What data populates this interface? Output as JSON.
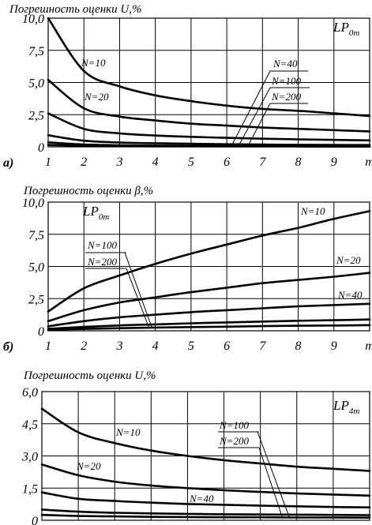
{
  "chart_data": [
    {
      "type": "line",
      "panel_label": "а)",
      "title": "Погрешность оценки U,%",
      "model_label": {
        "main": "LP",
        "sub": "0m"
      },
      "x": [
        1,
        2,
        3,
        4,
        5,
        6,
        7,
        8,
        9,
        10
      ],
      "x_tick_labels": [
        "1",
        "2",
        "3",
        "4",
        "5",
        "6",
        "7",
        "8",
        "9",
        "m"
      ],
      "ylim": [
        0,
        10
      ],
      "y_ticks": [
        0,
        2.5,
        5,
        7.5,
        10
      ],
      "y_tick_labels": [
        "0",
        "2,5",
        "5,0",
        "7,5",
        "10,0"
      ],
      "grid": true,
      "series": [
        {
          "name": "N=10",
          "values": [
            10.0,
            5.9,
            4.7,
            4.0,
            3.55,
            3.2,
            2.95,
            2.8,
            2.6,
            2.4
          ]
        },
        {
          "name": "N=20",
          "values": [
            5.2,
            3.0,
            2.35,
            2.05,
            1.8,
            1.65,
            1.5,
            1.4,
            1.3,
            1.2
          ]
        },
        {
          "name": "",
          "values": [
            2.6,
            1.4,
            1.05,
            0.88,
            0.78,
            0.7,
            0.63,
            0.58,
            0.54,
            0.5
          ]
        },
        {
          "name": "N=40",
          "values": [
            0.9,
            0.48,
            0.34,
            0.28,
            0.24,
            0.2,
            0.18,
            0.16,
            0.15,
            0.14
          ]
        },
        {
          "name": "N=100",
          "values": [
            0.35,
            0.18,
            0.13,
            0.1,
            0.09,
            0.08,
            0.07,
            0.06,
            0.06,
            0.05
          ]
        },
        {
          "name": "N=200",
          "values": [
            0.15,
            0.08,
            0.05,
            0.04,
            0.04,
            0.03,
            0.03,
            0.03,
            0.02,
            0.02
          ]
        }
      ]
    },
    {
      "type": "line",
      "panel_label": "б)",
      "title": "Погрешность оценки β,%",
      "model_label": {
        "main": "LP",
        "sub": "0m"
      },
      "x": [
        1,
        2,
        3,
        4,
        5,
        6,
        7,
        8,
        9,
        10
      ],
      "x_tick_labels": [
        "1",
        "2",
        "3",
        "4",
        "5",
        "6",
        "7",
        "8",
        "9",
        "m"
      ],
      "ylim": [
        0,
        10
      ],
      "y_ticks": [
        0,
        2.5,
        5,
        7.5,
        10
      ],
      "y_tick_labels": [
        "0",
        "2,5",
        "5,0",
        "7,5",
        "10,0"
      ],
      "grid": true,
      "series": [
        {
          "name": "N=10",
          "values": [
            1.5,
            3.3,
            4.3,
            5.2,
            6.0,
            6.7,
            7.4,
            8.0,
            8.7,
            9.3
          ]
        },
        {
          "name": "N=20",
          "values": [
            0.75,
            1.6,
            2.2,
            2.6,
            3.0,
            3.35,
            3.7,
            3.95,
            4.2,
            4.5
          ]
        },
        {
          "name": "N=40",
          "values": [
            0.35,
            0.75,
            1.05,
            1.25,
            1.45,
            1.6,
            1.75,
            1.9,
            2.0,
            2.1
          ]
        },
        {
          "name": "N=100",
          "values": [
            0.15,
            0.3,
            0.42,
            0.5,
            0.58,
            0.65,
            0.72,
            0.78,
            0.82,
            0.88
          ]
        },
        {
          "name": "N=200",
          "values": [
            0.07,
            0.15,
            0.2,
            0.25,
            0.29,
            0.32,
            0.36,
            0.39,
            0.41,
            0.44
          ]
        }
      ]
    },
    {
      "type": "line",
      "panel_label": "",
      "title": "Погрешность оценки U,%",
      "model_label": {
        "main": "LP",
        "sub": "4m"
      },
      "x": [
        1,
        2,
        3,
        4,
        5,
        6,
        7,
        8,
        9,
        10
      ],
      "x_tick_labels": [],
      "ylim": [
        0,
        6
      ],
      "y_ticks": [
        0,
        1.5,
        3,
        4.5,
        6
      ],
      "y_tick_labels": [
        "0",
        "1,5",
        "3,0",
        "4,5",
        "6,0"
      ],
      "grid": true,
      "series": [
        {
          "name": "N=10",
          "values": [
            5.2,
            4.1,
            3.6,
            3.25,
            3.0,
            2.8,
            2.65,
            2.5,
            2.4,
            2.3
          ]
        },
        {
          "name": "N=20",
          "values": [
            2.6,
            2.1,
            1.8,
            1.62,
            1.5,
            1.4,
            1.32,
            1.25,
            1.2,
            1.15
          ]
        },
        {
          "name": "N=40",
          "values": [
            1.3,
            1.0,
            0.9,
            0.82,
            0.76,
            0.72,
            0.68,
            0.65,
            0.62,
            0.6
          ]
        },
        {
          "name": "N=100",
          "values": [
            0.5,
            0.4,
            0.35,
            0.32,
            0.3,
            0.28,
            0.27,
            0.26,
            0.25,
            0.24
          ]
        },
        {
          "name": "N=200",
          "values": [
            0.25,
            0.2,
            0.18,
            0.16,
            0.15,
            0.14,
            0.14,
            0.13,
            0.13,
            0.12
          ]
        }
      ]
    }
  ]
}
